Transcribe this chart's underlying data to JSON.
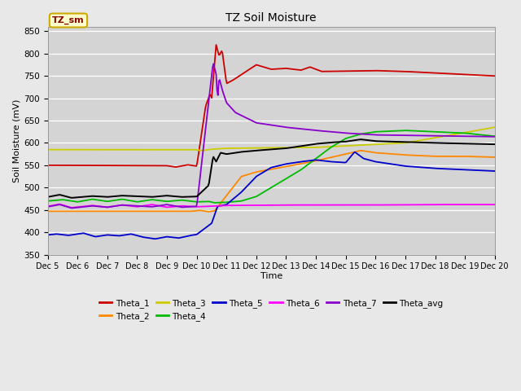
{
  "title": "TZ Soil Moisture",
  "xlabel": "Time",
  "ylabel": "Soil Moisture (mV)",
  "ylim": [
    350,
    860
  ],
  "yticks": [
    350,
    400,
    450,
    500,
    550,
    600,
    650,
    700,
    750,
    800,
    850
  ],
  "background_color": "#e8e8e8",
  "plot_bg_color": "#d4d4d4",
  "legend_box_label": "TZ_sm",
  "series_colors": {
    "Theta_1": "#cc0000",
    "Theta_2": "#ff8800",
    "Theta_3": "#cccc00",
    "Theta_4": "#00bb00",
    "Theta_5": "#0000cc",
    "Theta_6": "#ff00ff",
    "Theta_7": "#8800cc",
    "Theta_avg": "#000000"
  },
  "xtick_labels": [
    "Dec 5",
    "Dec 6",
    "Dec 7",
    "Dec 8",
    "Dec 9",
    "Dec 10",
    "Dec 11",
    "Dec 12",
    "Dec 13",
    "Dec 14",
    "Dec 15",
    "Dec 16",
    "Dec 17",
    "Dec 18",
    "Dec 19",
    "Dec 20"
  ]
}
